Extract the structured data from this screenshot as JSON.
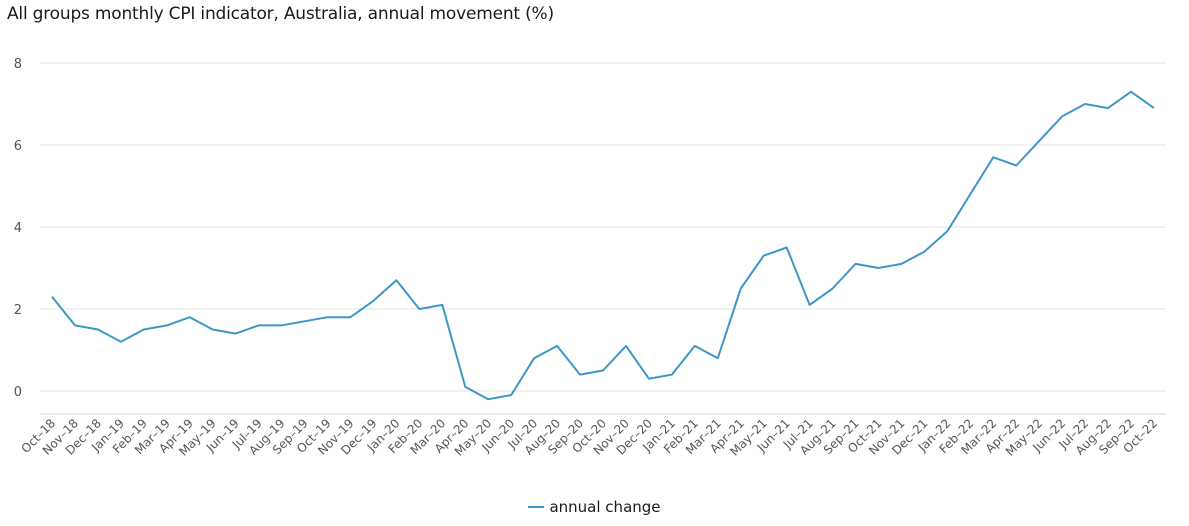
{
  "title": "All groups monthly CPI indicator, Australia, annual movement (%)",
  "legend": {
    "label": "annual change",
    "color": "#3e97c6"
  },
  "colors": {
    "line": "#3e97c6",
    "grid": "#e3e3e3",
    "axis": "#ccd6eb",
    "tick_text": "#555555"
  },
  "chart_data": {
    "type": "line",
    "title": "All groups monthly CPI indicator, Australia, annual movement (%)",
    "xlabel": "",
    "ylabel": "",
    "ylim": [
      -0.5,
      8
    ],
    "yticks": [
      0,
      2,
      4,
      6,
      8
    ],
    "grid": true,
    "legend_position": "bottom-center",
    "categories": [
      "Oct–18",
      "Nov–18",
      "Dec–18",
      "Jan–19",
      "Feb–19",
      "Mar–19",
      "Apr–19",
      "May–19",
      "Jun–19",
      "Jul–19",
      "Aug–19",
      "Sep–19",
      "Oct–19",
      "Nov–19",
      "Dec–19",
      "Jan–20",
      "Feb–20",
      "Mar–20",
      "Apr–20",
      "May–20",
      "Jun–20",
      "Jul–20",
      "Aug–20",
      "Sep–20",
      "Oct–20",
      "Nov–20",
      "Dec–20",
      "Jan–21",
      "Feb–21",
      "Mar–21",
      "Apr–21",
      "May–21",
      "Jun–21",
      "Jul–21",
      "Aug–21",
      "Sep–21",
      "Oct–21",
      "Nov–21",
      "Dec–21",
      "Jan–22",
      "Feb–22",
      "Mar–22",
      "Apr–22",
      "May–22",
      "Jun–22",
      "Jul–22",
      "Aug–22",
      "Sep–22",
      "Oct–22"
    ],
    "series": [
      {
        "name": "annual change",
        "values": [
          2.3,
          1.6,
          1.5,
          1.2,
          1.5,
          1.6,
          1.8,
          1.5,
          1.4,
          1.6,
          1.6,
          1.7,
          1.8,
          1.8,
          2.2,
          2.7,
          2.0,
          2.1,
          0.1,
          -0.2,
          -0.1,
          0.8,
          1.1,
          0.4,
          0.5,
          1.1,
          0.3,
          0.4,
          1.1,
          0.8,
          2.5,
          3.3,
          3.5,
          2.1,
          2.5,
          3.1,
          3.0,
          3.1,
          3.4,
          3.9,
          4.8,
          5.7,
          5.5,
          6.1,
          6.7,
          7.0,
          6.9,
          7.3,
          6.9
        ]
      }
    ]
  }
}
